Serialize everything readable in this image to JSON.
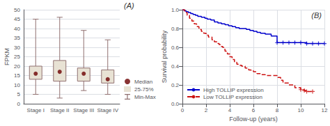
{
  "chart_data": [
    {
      "type": "box",
      "annotation": "(A)",
      "ylabel": "FPKM",
      "categories": [
        "Stage I",
        "Stage II",
        "Stage III",
        "Stage IV"
      ],
      "ylim": [
        0,
        50
      ],
      "yticks": [
        0,
        5,
        10,
        15,
        20,
        25,
        30,
        35,
        40,
        45,
        50
      ],
      "grid": "y",
      "legend": "lower right",
      "series": [
        {
          "name": "Median",
          "type": "scatter",
          "color": "#6b0000",
          "marker": "circle",
          "values": [
            16,
            17,
            16,
            13
          ]
        },
        {
          "name": "25-75%",
          "type": "box",
          "color": "#e8e2d4",
          "low": [
            13,
            12,
            12,
            11
          ],
          "high": [
            20,
            23,
            19,
            18
          ]
        },
        {
          "name": "Min-Max",
          "type": "whisker",
          "color": "#907070",
          "low": [
            5,
            3,
            7,
            5
          ],
          "high": [
            45,
            46,
            39,
            34
          ]
        }
      ]
    },
    {
      "type": "step",
      "annotation": "(B)",
      "xlabel": "Follow-up (years)",
      "ylabel": "Survival probability",
      "xlim": [
        0,
        12
      ],
      "xticks": [
        0,
        2,
        4,
        6,
        8,
        10,
        12
      ],
      "ylim": [
        0.0,
        1.0
      ],
      "yticks": [
        {
          "value": 0.0,
          "label": "0.0"
        },
        0.2,
        0.4,
        0.6,
        0.8,
        {
          "value": 1.0,
          "label": "1.0"
        }
      ],
      "grid": true,
      "legend": "lower left",
      "series": [
        {
          "name": "High TOLLIP expression",
          "color": "#0000cc",
          "line_style": "solid",
          "x": [
            0,
            0.15,
            0.3,
            0.5,
            0.7,
            0.9,
            1.1,
            1.3,
            1.6,
            1.9,
            2.1,
            2.4,
            2.7,
            3.0,
            3.3,
            3.6,
            3.9,
            4.2,
            4.5,
            4.8,
            5.1,
            5.4,
            5.7,
            6.0,
            6.3,
            6.6,
            7.0,
            7.5,
            8.0,
            8.5,
            9.0,
            9.5,
            10.0,
            10.5,
            11.0,
            11.5,
            12.0
          ],
          "values": [
            1.0,
            0.99,
            0.98,
            0.97,
            0.96,
            0.95,
            0.94,
            0.93,
            0.92,
            0.91,
            0.9,
            0.89,
            0.87,
            0.86,
            0.85,
            0.84,
            0.83,
            0.82,
            0.81,
            0.8,
            0.8,
            0.79,
            0.78,
            0.77,
            0.76,
            0.75,
            0.74,
            0.72,
            0.65,
            0.65,
            0.65,
            0.65,
            0.65,
            0.64,
            0.64,
            0.64,
            0.64
          ],
          "censored": {
            "x": [
              8.0,
              8.5,
              9.0,
              9.5,
              10.0,
              10.5,
              11.0,
              11.5,
              12.0
            ],
            "y": [
              0.65,
              0.65,
              0.65,
              0.65,
              0.65,
              0.64,
              0.64,
              0.64,
              0.64
            ]
          }
        },
        {
          "name": "Low TOLLIP expression",
          "color": "#cc1111",
          "line_style": "dashed",
          "x": [
            0,
            0.2,
            0.4,
            0.6,
            0.8,
            1.0,
            1.2,
            1.4,
            1.6,
            1.8,
            2.0,
            2.2,
            2.5,
            2.7,
            2.9,
            3.0,
            3.1,
            3.2,
            3.3,
            3.4,
            3.5,
            3.6,
            3.8,
            4.0,
            4.2,
            4.4,
            4.6,
            4.8,
            5.0,
            5.3,
            5.6,
            5.8,
            6.0,
            6.3,
            6.6,
            7.0,
            7.5,
            8.0,
            8.3,
            8.5,
            9.0,
            9.5,
            10.0,
            10.3,
            10.5,
            11.0
          ],
          "values": [
            1.0,
            0.97,
            0.94,
            0.91,
            0.88,
            0.85,
            0.82,
            0.79,
            0.77,
            0.75,
            0.73,
            0.71,
            0.68,
            0.66,
            0.65,
            0.64,
            0.63,
            0.62,
            0.61,
            0.6,
            0.58,
            0.56,
            0.53,
            0.5,
            0.47,
            0.44,
            0.42,
            0.41,
            0.4,
            0.38,
            0.36,
            0.35,
            0.34,
            0.32,
            0.31,
            0.3,
            0.3,
            0.28,
            0.25,
            0.22,
            0.2,
            0.17,
            0.15,
            0.14,
            0.13,
            0.13
          ],
          "censored": {
            "x": [
              10.0,
              10.3,
              10.5,
              11.0
            ],
            "y": [
              0.15,
              0.14,
              0.13,
              0.13
            ]
          }
        }
      ]
    }
  ]
}
